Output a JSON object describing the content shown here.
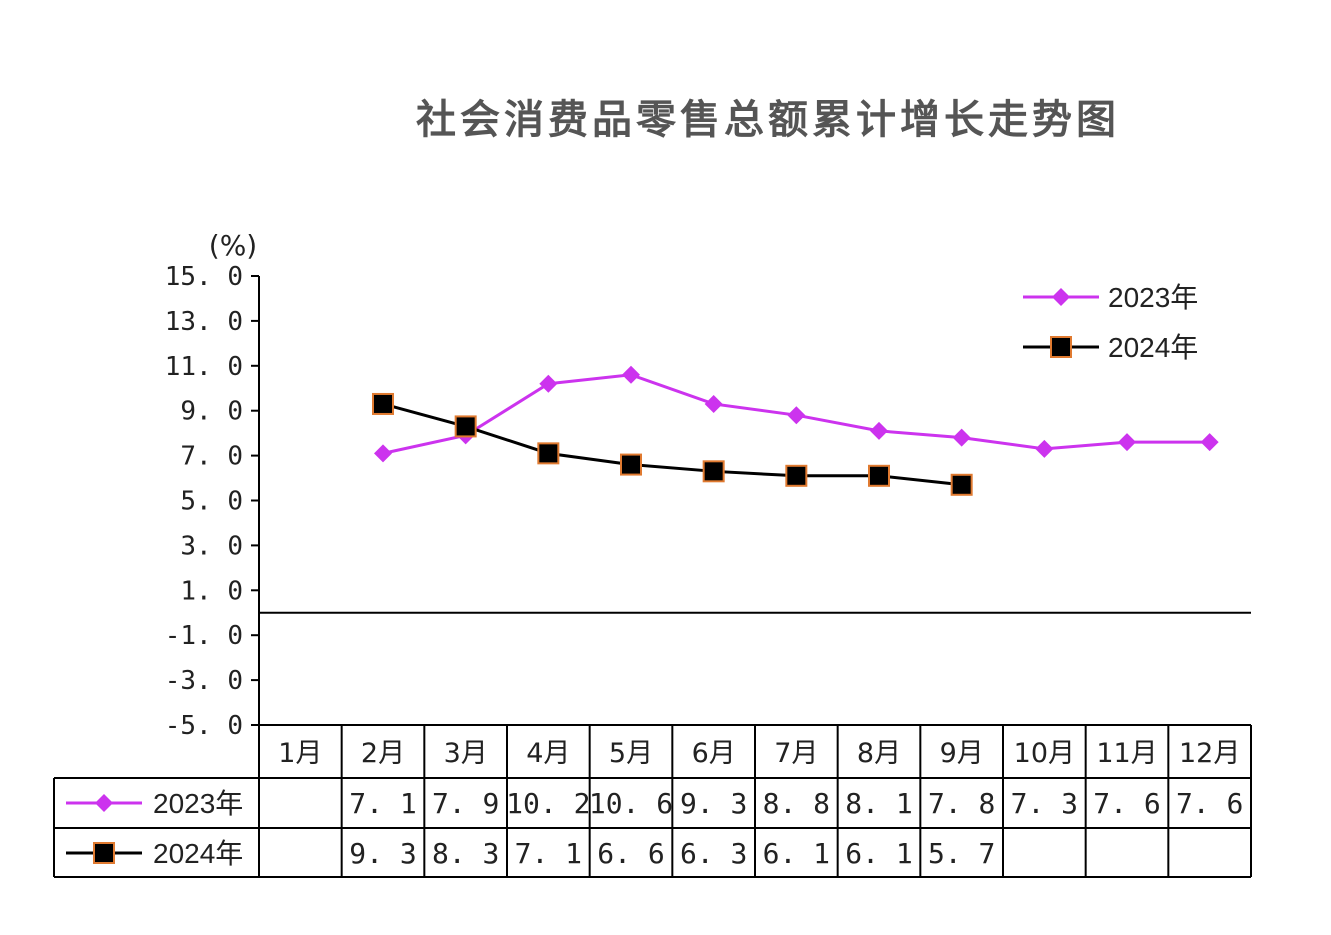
{
  "chart_data": {
    "type": "line",
    "title": "社会消费品零售总额累计增长走势图",
    "yunit": "(%)",
    "ylim": [
      -5.0,
      15.0
    ],
    "yticks": [
      15.0,
      13.0,
      11.0,
      9.0,
      7.0,
      5.0,
      3.0,
      1.0,
      -1.0,
      -3.0,
      -5.0
    ],
    "ytick_labels": [
      "15. 0",
      "13. 0",
      "11. 0",
      "9. 0",
      "7. 0",
      "5. 0",
      "3. 0",
      "1. 0",
      "-1. 0",
      "-3. 0",
      "-5. 0"
    ],
    "categories": [
      "1月",
      "2月",
      "3月",
      "4月",
      "5月",
      "6月",
      "7月",
      "8月",
      "9月",
      "10月",
      "11月",
      "12月"
    ],
    "legend_position": "top-right",
    "series": [
      {
        "name": "2023年",
        "color": "#cc33ee",
        "marker": "diamond",
        "values": [
          null,
          7.1,
          7.9,
          10.2,
          10.6,
          9.3,
          8.8,
          8.1,
          7.8,
          7.3,
          7.6,
          7.6
        ],
        "value_labels": [
          "",
          "7. 1",
          "7. 9",
          "10. 2",
          "10. 6",
          "9. 3",
          "8. 8",
          "8. 1",
          "7. 8",
          "7. 3",
          "7. 6",
          "7. 6"
        ]
      },
      {
        "name": "2024年",
        "color": "#000000",
        "marker_edge": "#e07a30",
        "marker": "square",
        "values": [
          null,
          9.3,
          8.3,
          7.1,
          6.6,
          6.3,
          6.1,
          6.1,
          5.7,
          null,
          null,
          null
        ],
        "value_labels": [
          "",
          "9. 3",
          "8. 3",
          "7. 1",
          "6. 6",
          "6. 3",
          "6. 1",
          "6. 1",
          "5. 7",
          "",
          "",
          ""
        ]
      }
    ]
  }
}
